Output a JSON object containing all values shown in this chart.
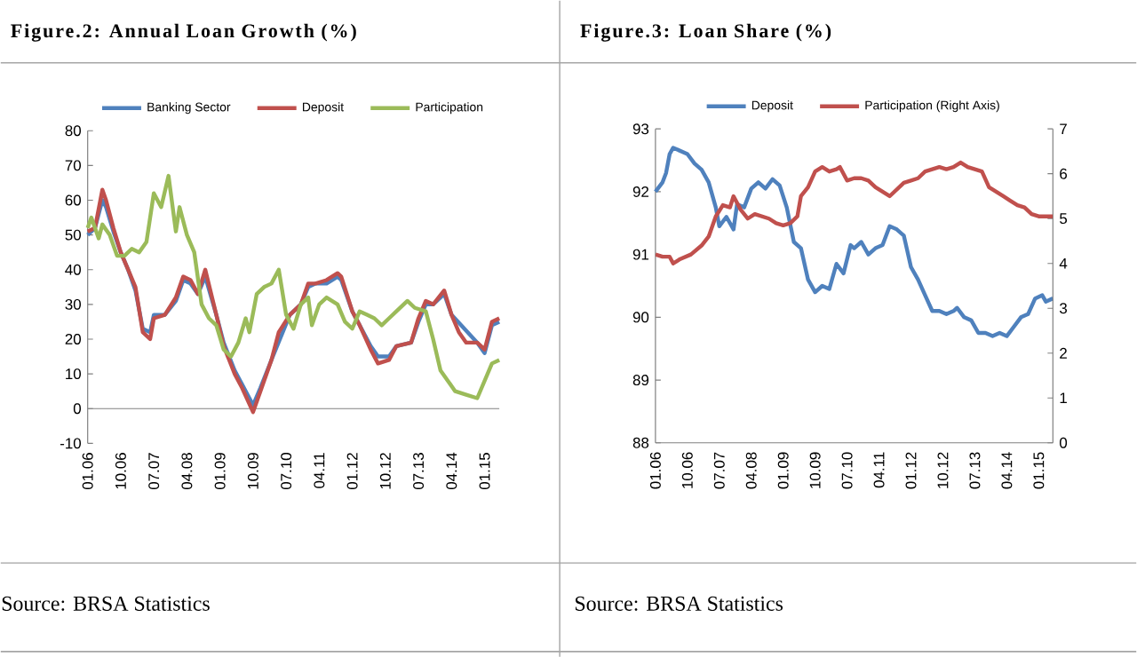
{
  "chart_data": [
    {
      "type": "line",
      "title": "Figure.2: Annual Loan Growth (%)",
      "annotations": [
        "Source: BRSA Statistics"
      ],
      "legend": "top",
      "xlim": [
        "2006-01",
        "2015-05"
      ],
      "xticks": [
        {
          "value": "2006-01",
          "label": "01.06"
        },
        {
          "value": "2006-10",
          "label": "10.06"
        },
        {
          "value": "2007-07",
          "label": "07.07"
        },
        {
          "value": "2008-04",
          "label": "04.08"
        },
        {
          "value": "2009-01",
          "label": "01.09"
        },
        {
          "value": "2009-10",
          "label": "10.09"
        },
        {
          "value": "2010-07",
          "label": "07.10"
        },
        {
          "value": "2011-04",
          "label": "04.11"
        },
        {
          "value": "2012-01",
          "label": "01.12"
        },
        {
          "value": "2012-10",
          "label": "10.12"
        },
        {
          "value": "2013-07",
          "label": "07.13"
        },
        {
          "value": "2014-04",
          "label": "04.14"
        },
        {
          "value": "2015-01",
          "label": "01.15"
        }
      ],
      "ylim": [
        -10,
        80
      ],
      "yticks": [
        -10,
        0,
        10,
        20,
        30,
        40,
        50,
        60,
        70,
        80
      ],
      "series": [
        {
          "name": "Banking Sector",
          "color": "#4f81bd",
          "x": [
            "2006-01",
            "2006-03",
            "2006-05",
            "2006-06",
            "2006-08",
            "2006-10",
            "2006-12",
            "2007-02",
            "2007-04",
            "2007-06",
            "2007-07",
            "2007-10",
            "2008-01",
            "2008-03",
            "2008-05",
            "2008-07",
            "2008-09",
            "2008-12",
            "2009-02",
            "2009-05",
            "2009-07",
            "2009-10",
            "2009-12",
            "2010-03",
            "2010-05",
            "2010-08",
            "2010-11",
            "2011-01",
            "2011-03",
            "2011-06",
            "2011-09",
            "2011-10",
            "2012-01",
            "2012-03",
            "2012-06",
            "2012-08",
            "2012-11",
            "2013-01",
            "2013-05",
            "2013-07",
            "2013-09",
            "2013-11",
            "2014-02",
            "2014-04",
            "2014-06",
            "2014-08",
            "2014-11",
            "2015-01",
            "2015-03",
            "2015-05"
          ],
          "values": [
            50,
            52,
            60,
            58,
            51,
            45,
            40,
            34,
            23,
            22,
            27,
            27,
            31,
            37,
            36,
            33,
            38,
            27,
            19,
            11,
            7,
            1,
            6,
            14,
            null,
            27,
            30,
            35,
            36,
            36,
            38,
            37,
            28,
            24,
            18,
            15,
            15,
            18,
            19,
            25,
            30,
            30,
            33,
            27,
            null,
            null,
            19,
            16,
            24,
            25
          ]
        },
        {
          "name": "Deposit",
          "color": "#c0504d",
          "x": [
            "2006-01",
            "2006-03",
            "2006-05",
            "2006-06",
            "2006-08",
            "2006-10",
            "2006-12",
            "2007-02",
            "2007-04",
            "2007-06",
            "2007-07",
            "2007-10",
            "2008-01",
            "2008-03",
            "2008-05",
            "2008-07",
            "2008-09",
            "2008-12",
            "2009-02",
            "2009-05",
            "2009-07",
            "2009-10",
            "2009-12",
            "2010-03",
            "2010-05",
            "2010-08",
            "2010-11",
            "2011-01",
            "2011-03",
            "2011-06",
            "2011-09",
            "2011-10",
            "2012-01",
            "2012-03",
            "2012-06",
            "2012-08",
            "2012-11",
            "2013-01",
            "2013-05",
            "2013-07",
            "2013-09",
            "2013-11",
            "2014-02",
            "2014-04",
            "2014-06",
            "2014-08",
            "2014-11",
            "2015-01",
            "2015-03",
            "2015-05"
          ],
          "values": [
            51,
            52,
            63,
            60,
            52,
            45,
            40,
            35,
            22,
            20,
            26,
            27,
            32,
            38,
            37,
            33,
            40,
            27,
            18,
            10,
            6,
            -1,
            5,
            14,
            22,
            27,
            30,
            36,
            36,
            37,
            39,
            38,
            28,
            24,
            17,
            13,
            14,
            18,
            19,
            26,
            31,
            30,
            34,
            27,
            22,
            19,
            19,
            17,
            25,
            26
          ]
        },
        {
          "name": "Participation",
          "color": "#9bbb59",
          "x": [
            "2006-01",
            "2006-02",
            "2006-04",
            "2006-05",
            "2006-07",
            "2006-09",
            "2006-11",
            "2007-01",
            "2007-03",
            "2007-05",
            "2007-07",
            "2007-09",
            "2007-11",
            "2008-01",
            "2008-02",
            "2008-04",
            "2008-06",
            "2008-08",
            "2008-10",
            "2008-12",
            "2009-02",
            "2009-04",
            "2009-06",
            "2009-08",
            "2009-09",
            "2009-11",
            "2010-01",
            "2010-03",
            "2010-05",
            "2010-07",
            "2010-09",
            "2010-11",
            "2011-01",
            "2011-02",
            "2011-04",
            "2011-06",
            "2011-09",
            "2011-11",
            "2012-01",
            "2012-03",
            "2012-05",
            "2012-07",
            "2012-09",
            "2012-11",
            "2013-01",
            "2013-04",
            "2013-06",
            "2013-09",
            "2013-11",
            "2014-01",
            "2014-03",
            "2014-05",
            "2014-08",
            "2014-11",
            "2015-03",
            "2015-05"
          ],
          "values": [
            52,
            55,
            49,
            53,
            50,
            44,
            44,
            46,
            45,
            48,
            62,
            58,
            67,
            51,
            58,
            50,
            45,
            30,
            26,
            24,
            17,
            15,
            19,
            26,
            22,
            33,
            35,
            36,
            40,
            27,
            23,
            30,
            32,
            24,
            30,
            32,
            30,
            25,
            23,
            28,
            27,
            26,
            24,
            26,
            28,
            31,
            29,
            28,
            20,
            11,
            8,
            5,
            4,
            3,
            13,
            14
          ]
        }
      ]
    },
    {
      "type": "line",
      "title": "Figure.3: Loan Share (%)",
      "annotations": [
        "Source: BRSA Statistics"
      ],
      "legend": "top",
      "xlim": [
        "2006-01",
        "2015-05"
      ],
      "xticks": [
        {
          "value": "2006-01",
          "label": "01.06"
        },
        {
          "value": "2006-10",
          "label": "10.06"
        },
        {
          "value": "2007-07",
          "label": "07.07"
        },
        {
          "value": "2008-04",
          "label": "04.08"
        },
        {
          "value": "2009-01",
          "label": "01.09"
        },
        {
          "value": "2009-10",
          "label": "10.09"
        },
        {
          "value": "2010-07",
          "label": "07.10"
        },
        {
          "value": "2011-04",
          "label": "04.11"
        },
        {
          "value": "2012-01",
          "label": "01.12"
        },
        {
          "value": "2012-10",
          "label": "10.12"
        },
        {
          "value": "2013-07",
          "label": "07.13"
        },
        {
          "value": "2014-04",
          "label": "04.14"
        },
        {
          "value": "2015-01",
          "label": "01.15"
        }
      ],
      "ylim": [
        88,
        93
      ],
      "yticks": [
        88,
        89,
        90,
        91,
        92,
        93
      ],
      "y2lim": [
        0,
        7
      ],
      "y2ticks": [
        0,
        1,
        2,
        3,
        4,
        5,
        6,
        7
      ],
      "series": [
        {
          "name": "Deposit",
          "color": "#4f81bd",
          "x": [
            "2006-01",
            "2006-03",
            "2006-04",
            "2006-05",
            "2006-06",
            "2006-08",
            "2006-10",
            "2006-12",
            "2007-02",
            "2007-04",
            "2007-06",
            "2007-07",
            "2007-09",
            "2007-11",
            "2007-12",
            "2008-02",
            "2008-04",
            "2008-06",
            "2008-08",
            "2008-10",
            "2008-12",
            "2009-02",
            "2009-04",
            "2009-06",
            "2009-08",
            "2009-10",
            "2009-12",
            "2010-02",
            "2010-04",
            "2010-06",
            "2010-08",
            "2010-09",
            "2010-11",
            "2011-01",
            "2011-03",
            "2011-05",
            "2011-07",
            "2011-09",
            "2011-11",
            "2012-01",
            "2012-03",
            "2012-05",
            "2012-07",
            "2012-09",
            "2012-11",
            "2013-01",
            "2013-02",
            "2013-04",
            "2013-06",
            "2013-08",
            "2013-10",
            "2013-12",
            "2014-02",
            "2014-04",
            "2014-06",
            "2014-08",
            "2014-10",
            "2014-12",
            "2015-02",
            "2015-03",
            "2015-05"
          ],
          "values": [
            92.0,
            92.15,
            92.3,
            92.6,
            92.7,
            92.65,
            92.6,
            92.45,
            92.35,
            92.15,
            91.75,
            91.45,
            91.6,
            91.4,
            91.8,
            91.75,
            92.05,
            92.15,
            92.05,
            92.2,
            92.1,
            91.75,
            91.2,
            91.1,
            90.6,
            90.4,
            90.5,
            90.45,
            90.85,
            90.7,
            91.15,
            91.1,
            91.2,
            91.0,
            91.1,
            91.15,
            91.45,
            91.4,
            91.3,
            90.8,
            90.6,
            90.35,
            90.1,
            90.1,
            90.05,
            90.1,
            90.15,
            90.0,
            89.95,
            89.75,
            89.75,
            89.7,
            89.75,
            89.7,
            89.85,
            90.0,
            90.05,
            90.3,
            90.35,
            90.25,
            90.3
          ]
        },
        {
          "name": "Participation (Right Axis)",
          "color": "#c0504d",
          "axis": "y2",
          "x": [
            "2006-01",
            "2006-03",
            "2006-05",
            "2006-06",
            "2006-08",
            "2006-11",
            "2007-02",
            "2007-04",
            "2007-06",
            "2007-08",
            "2007-10",
            "2007-11",
            "2008-01",
            "2008-03",
            "2008-05",
            "2008-07",
            "2008-09",
            "2008-11",
            "2009-01",
            "2009-03",
            "2009-05",
            "2009-06",
            "2009-08",
            "2009-10",
            "2009-12",
            "2010-02",
            "2010-04",
            "2010-05",
            "2010-07",
            "2010-09",
            "2010-11",
            "2011-01",
            "2011-03",
            "2011-05",
            "2011-07",
            "2011-09",
            "2011-11",
            "2012-01",
            "2012-03",
            "2012-05",
            "2012-07",
            "2012-09",
            "2012-11",
            "2013-01",
            "2013-03",
            "2013-05",
            "2013-07",
            "2013-09",
            "2013-11",
            "2014-01",
            "2014-03",
            "2014-05",
            "2014-07",
            "2014-09",
            "2014-11",
            "2015-01",
            "2015-05"
          ],
          "values": [
            4.2,
            4.15,
            4.15,
            4.0,
            4.1,
            4.2,
            4.4,
            4.6,
            5.05,
            5.3,
            5.25,
            5.5,
            5.2,
            5.0,
            5.1,
            5.05,
            5.0,
            4.9,
            4.85,
            4.9,
            5.05,
            5.5,
            5.7,
            6.05,
            6.15,
            6.05,
            6.1,
            6.15,
            5.85,
            5.9,
            5.9,
            5.85,
            5.7,
            5.6,
            5.5,
            5.65,
            5.8,
            5.85,
            5.9,
            6.05,
            6.1,
            6.15,
            6.1,
            6.15,
            6.25,
            6.15,
            6.1,
            6.05,
            5.7,
            5.6,
            5.5,
            5.4,
            5.3,
            5.25,
            5.1,
            5.05,
            5.05
          ]
        }
      ]
    }
  ]
}
